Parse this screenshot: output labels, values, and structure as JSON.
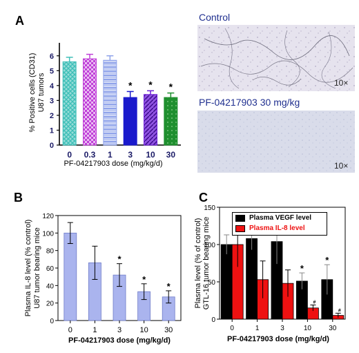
{
  "panels": {
    "a": {
      "letter": "A",
      "micro_control_title": "Control",
      "micro_control_mag": "10×",
      "micro_treated_title": "PF-04217903 30 mg/kg",
      "micro_treated_mag": "10×"
    },
    "b": {
      "letter": "B"
    },
    "c": {
      "letter": "C"
    }
  },
  "chart_data": [
    {
      "id": "A",
      "type": "bar",
      "xlabel": "PF-04217903  dose (mg/kg/d)",
      "ylabel": "% Positive cells (CD31)",
      "ylabel2": "U87 tumors",
      "categories": [
        "0",
        "0.3",
        "1",
        "3",
        "10",
        "30"
      ],
      "values": [
        5.6,
        5.8,
        5.7,
        3.2,
        3.4,
        3.2
      ],
      "errors": [
        0.3,
        0.3,
        0.3,
        0.4,
        0.25,
        0.3
      ],
      "significance": [
        "",
        "",
        "",
        "*",
        "*",
        "*"
      ],
      "bar_colors": [
        "#3fbfb8",
        "#c040d8",
        "#8fa3ea",
        "#1a1acc",
        "#6a1ad8",
        "#1f8f2f"
      ],
      "bar_patterns": [
        "crosshatch",
        "checker",
        "hlines",
        "solid",
        "diag",
        "dots"
      ],
      "yticks": [
        0,
        1,
        2,
        3,
        4,
        5,
        6
      ],
      "ylim": [
        0,
        6.5
      ],
      "grid": false
    },
    {
      "id": "B",
      "type": "bar",
      "xlabel": "PF-04217903 dose (mg/kg/d)",
      "ylabel": "Plasma IL-8 level (% control)",
      "ylabel2": "U87 tumor bearing mice",
      "categories": [
        "0",
        "1",
        "3",
        "10",
        "30"
      ],
      "values": [
        100,
        66,
        52,
        33,
        27
      ],
      "errors": [
        12,
        19,
        13,
        9,
        7
      ],
      "significance": [
        "",
        "",
        "*",
        "*",
        "*"
      ],
      "bar_color": "#aab4ee",
      "yticks": [
        0,
        20,
        40,
        60,
        80,
        100,
        120
      ],
      "ylim": [
        0,
        120
      ],
      "grid": false
    },
    {
      "id": "C",
      "type": "bar",
      "xlabel": "PF-04217903 dose (mg/kg/d)",
      "ylabel": "Plasma level (% of control)",
      "ylabel2": "GTL-16 tumor bearing mice",
      "categories": [
        "0",
        "1",
        "3",
        "10",
        "30"
      ],
      "series": [
        {
          "name": "Plasma VEGF level",
          "color": "#000000",
          "values": [
            100,
            108,
            104,
            51,
            53
          ],
          "errors": [
            13,
            15,
            30,
            11,
            20
          ],
          "significance": [
            "",
            "",
            "",
            "*",
            "*"
          ]
        },
        {
          "name": "Plasma IL-8 level",
          "color": "#ee1111",
          "values": [
            100,
            53,
            48,
            15,
            5
          ],
          "errors": [
            30,
            25,
            18,
            4,
            3
          ],
          "significance": [
            "",
            "",
            "",
            "#",
            "#"
          ]
        }
      ],
      "yticks": [
        0,
        50,
        100,
        150
      ],
      "ylim": [
        0,
        150
      ],
      "legend_position": "top",
      "grid": false
    }
  ]
}
